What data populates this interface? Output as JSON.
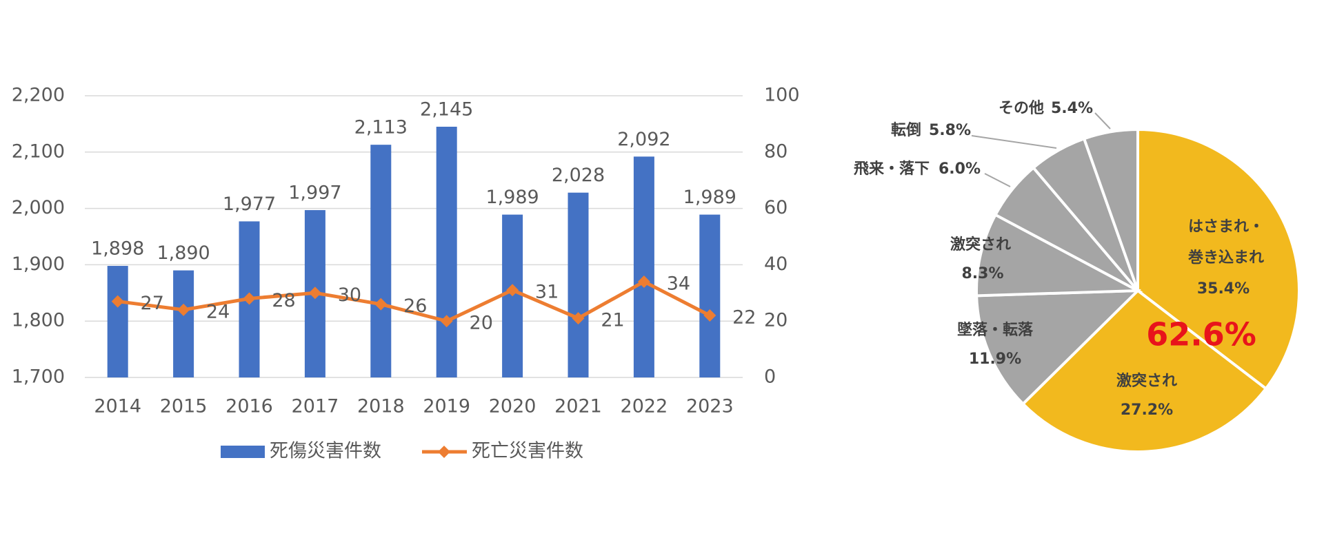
{
  "chart_data": [
    {
      "type": "bar",
      "categories": [
        "2014",
        "2015",
        "2016",
        "2017",
        "2018",
        "2019",
        "2020",
        "2021",
        "2022",
        "2023"
      ],
      "series": [
        {
          "name": "死傷災害件数",
          "type": "bar",
          "color": "#4472c4",
          "values": [
            1898,
            1890,
            1977,
            1997,
            2113,
            2145,
            1989,
            2028,
            2092,
            1989
          ],
          "value_labels": [
            "1,898",
            "1,890",
            "1,977",
            "1,997",
            "2,113",
            "2,145",
            "1,989",
            "2,028",
            "2,092",
            "1,989"
          ]
        },
        {
          "name": "死亡災害件数",
          "type": "line",
          "axis": "y2",
          "color": "#ed7d31",
          "values": [
            27,
            24,
            28,
            30,
            26,
            20,
            31,
            21,
            34,
            22
          ]
        }
      ],
      "ylim": [
        1700,
        2200
      ],
      "yticks": [
        {
          "value": 1700,
          "label": "1,700"
        },
        {
          "value": 1800,
          "label": "1,800"
        },
        {
          "value": 1900,
          "label": "1,900"
        },
        {
          "value": 2000,
          "label": "2,000"
        },
        {
          "value": 2100,
          "label": "2,100"
        },
        {
          "value": 2200,
          "label": "2,200"
        }
      ],
      "y2lim": [
        0,
        100
      ],
      "y2ticks": [
        0,
        20,
        40,
        60,
        80,
        100
      ],
      "grid": true,
      "legend": "bottom"
    },
    {
      "type": "pie",
      "categories": [
        "はさまれ・巻き込まれ",
        "激突され",
        "墜落・転落",
        "激突され",
        "飛来・落下",
        "転倒",
        "その他"
      ],
      "values": [
        35.4,
        27.2,
        11.9,
        8.3,
        6.0,
        5.8,
        5.4
      ],
      "value_labels": [
        "35.4%",
        "27.2%",
        "11.9%",
        "8.3%",
        "6.0%",
        "5.8%",
        "5.4%"
      ],
      "colors": [
        "#f2b91e",
        "#f2b91e",
        "#a5a5a5",
        "#a5a5a5",
        "#a5a5a5",
        "#a5a5a5",
        "#a5a5a5"
      ],
      "annotation": "62.6%"
    }
  ]
}
